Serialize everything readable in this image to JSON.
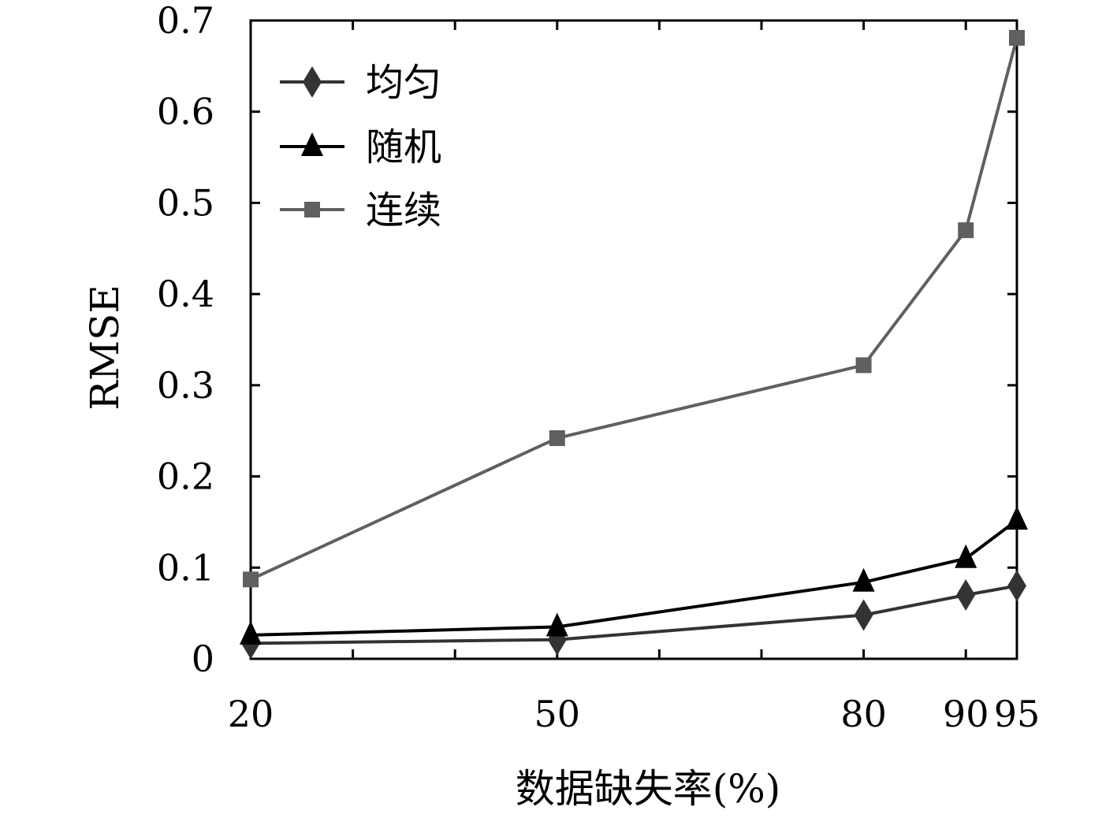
{
  "chart_data": {
    "type": "line",
    "xlabel": "数据缺失率(%)",
    "ylabel": "RMSE",
    "x": [
      20,
      50,
      80,
      90,
      95
    ],
    "x_tick_labels": [
      "20",
      "50",
      "80",
      "90",
      "95"
    ],
    "xlim": [
      20,
      95
    ],
    "ylim": [
      0,
      0.7
    ],
    "y_tick_labels": [
      "0",
      "0.1",
      "0.2",
      "0.3",
      "0.4",
      "0.5",
      "0.6",
      "0.7"
    ],
    "grid": false,
    "legend_position": "top-left",
    "series": [
      {
        "name": "均匀",
        "marker": "diamond",
        "color": "#333333",
        "values": [
          0.017,
          0.021,
          0.048,
          0.07,
          0.08
        ]
      },
      {
        "name": "随机",
        "marker": "triangle",
        "color": "#000000",
        "values": [
          0.026,
          0.035,
          0.084,
          0.11,
          0.152
        ]
      },
      {
        "name": "连续",
        "marker": "square",
        "color": "#606060",
        "values": [
          0.087,
          0.242,
          0.322,
          0.47,
          0.681
        ]
      }
    ]
  }
}
